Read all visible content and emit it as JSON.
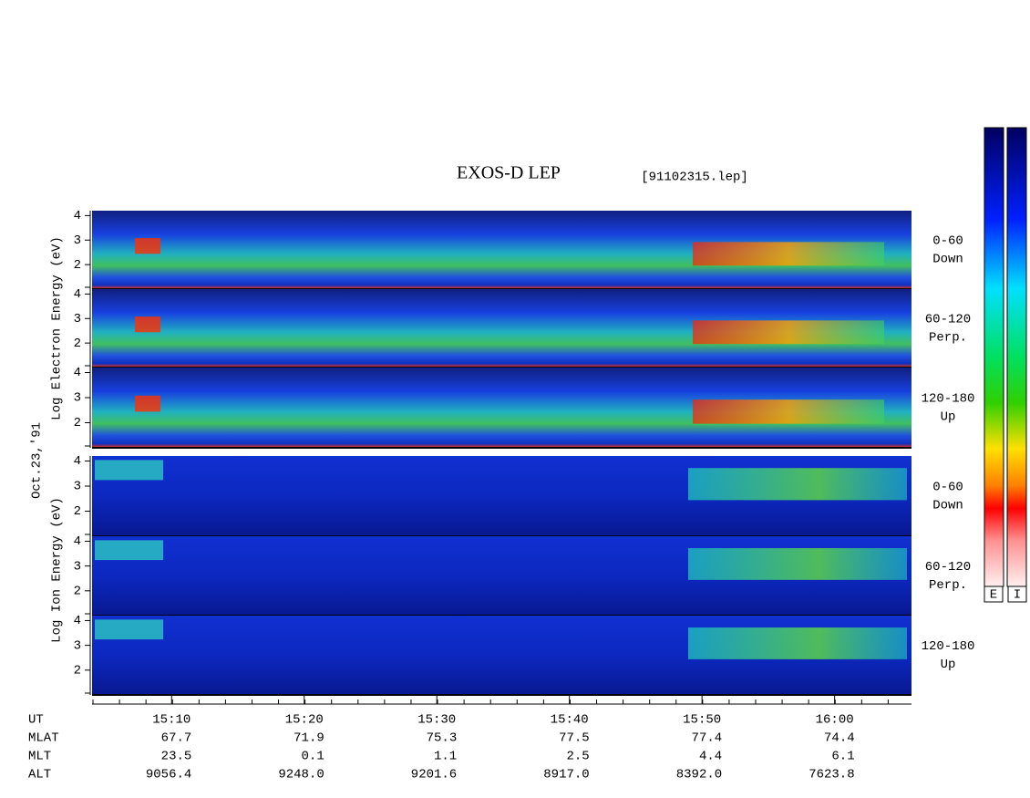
{
  "chart_data": {
    "type": "spectrogram",
    "title": "EXOS-D LEP",
    "subtitle": "[91102315.lep]",
    "date_label": "Oct.23,'91",
    "xlim": [
      904,
      965.8
    ],
    "xticks": [
      {
        "value": 910,
        "label": "15:10"
      },
      {
        "value": 920,
        "label": "15:20"
      },
      {
        "value": 930,
        "label": "15:30"
      },
      {
        "value": 940,
        "label": "15:40"
      },
      {
        "value": 950,
        "label": "15:50"
      },
      {
        "value": 960,
        "label": "16:00"
      }
    ],
    "groups": [
      {
        "ylabel": "Log Electron Energy (eV)",
        "colorbar": "E",
        "panels": [
          {
            "label": [
              "0-60",
              "Down"
            ],
            "ylim": [
              1,
              4.2
            ],
            "yticks": [
              2,
              3,
              4
            ]
          },
          {
            "label": [
              "60-120",
              "Perp."
            ],
            "ylim": [
              1,
              4.2
            ],
            "yticks": [
              2,
              3,
              4
            ]
          },
          {
            "label": [
              "120-180",
              "Up"
            ],
            "ylim": [
              1,
              4.2
            ],
            "yticks": [
              2,
              3,
              4
            ]
          }
        ]
      },
      {
        "ylabel": "Log Ion Energy (eV)",
        "colorbar": "I",
        "panels": [
          {
            "label": [
              "0-60",
              "Down"
            ],
            "ylim": [
              1,
              4.2
            ],
            "yticks": [
              2,
              3,
              4
            ]
          },
          {
            "label": [
              "60-120",
              "Perp."
            ],
            "ylim": [
              1,
              4.2
            ],
            "yticks": [
              2,
              3,
              4
            ]
          },
          {
            "label": [
              "120-180",
              "Up"
            ],
            "ylim": [
              1,
              4.2
            ],
            "yticks": [
              2,
              3,
              4
            ]
          }
        ]
      }
    ],
    "ephemeris": [
      {
        "name": "UT"
      },
      {
        "name": "MLAT",
        "values": [
          "67.7",
          "71.9",
          "75.3",
          "77.5",
          "77.4",
          "74.4"
        ]
      },
      {
        "name": "MLT",
        "values": [
          "23.5",
          "0.1",
          "1.1",
          "2.5",
          "4.4",
          "6.1"
        ]
      },
      {
        "name": "ALT",
        "values": [
          "9056.4",
          "9248.0",
          "9201.6",
          "8917.0",
          "8392.0",
          "7623.8"
        ]
      }
    ]
  }
}
